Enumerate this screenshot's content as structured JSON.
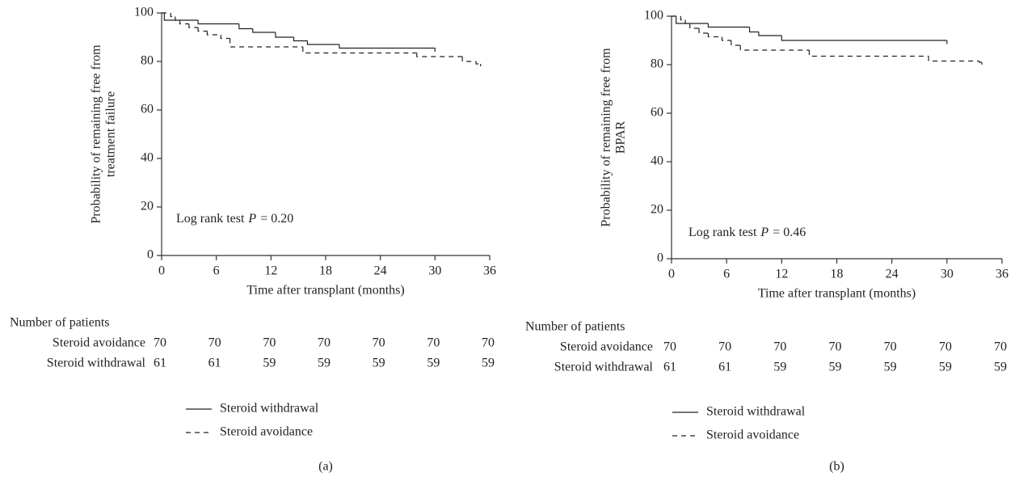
{
  "chart_data": [
    {
      "type": "line",
      "drawstyle": "steps-post",
      "panel_label": "(a)",
      "xlabel": "Time after transplant (months)",
      "ylabel": [
        "Probability of remaining free from",
        "treatment failure"
      ],
      "xlim": [
        0,
        36
      ],
      "ylim": [
        0,
        100
      ],
      "xticks": [
        0,
        6,
        12,
        18,
        24,
        30,
        36
      ],
      "yticks": [
        0,
        20,
        40,
        60,
        80,
        100
      ],
      "annotation": {
        "prefix": "Log rank test",
        "italic": "P",
        "suffix": "= 0.20"
      },
      "series": [
        {
          "name": "Steroid withdrawal",
          "color": "#222222",
          "dash": "none",
          "x": [
            0,
            0.3,
            4,
            8.5,
            10,
            12.5,
            14.5,
            16,
            19.5,
            30
          ],
          "values": [
            100,
            97,
            95.5,
            93.5,
            92,
            90,
            88.5,
            87,
            85.5,
            84
          ]
        },
        {
          "name": "Steroid avoidance",
          "color": "#222222",
          "dash": "6,5",
          "x": [
            0,
            1,
            1.5,
            2,
            3,
            4,
            5,
            6.5,
            7.5,
            15.5,
            28,
            33,
            34.5,
            35
          ],
          "values": [
            100,
            98.5,
            97,
            95.5,
            94,
            92.5,
            91,
            89.5,
            86,
            83.5,
            82,
            80,
            79,
            78
          ]
        }
      ],
      "risk_table": {
        "title": "Number of patients",
        "rows": [
          {
            "label": "Steroid avoidance",
            "counts": [
              70,
              70,
              70,
              70,
              70,
              70,
              70
            ]
          },
          {
            "label": "Steroid withdrawal",
            "counts": [
              61,
              61,
              59,
              59,
              59,
              59,
              59
            ]
          }
        ]
      }
    },
    {
      "type": "line",
      "drawstyle": "steps-post",
      "panel_label": "(b)",
      "xlabel": "Time after transplant (months)",
      "ylabel": [
        "Probability of remaining free from",
        "BPAR"
      ],
      "xlim": [
        0,
        36
      ],
      "ylim": [
        0,
        100
      ],
      "xticks": [
        0,
        6,
        12,
        18,
        24,
        30,
        36
      ],
      "yticks": [
        0,
        20,
        40,
        60,
        80,
        100
      ],
      "annotation": {
        "prefix": "Log rank test",
        "italic": "P",
        "suffix": "= 0.46"
      },
      "series": [
        {
          "name": "Steroid withdrawal",
          "color": "#222222",
          "dash": "none",
          "x": [
            0,
            0.5,
            4,
            8.5,
            9.5,
            12,
            30
          ],
          "values": [
            100,
            97,
            95.5,
            93.5,
            92,
            90,
            88.5
          ]
        },
        {
          "name": "Steroid avoidance",
          "color": "#222222",
          "dash": "6,5",
          "x": [
            0,
            1,
            1.5,
            2,
            3,
            4,
            5.5,
            6.5,
            7.5,
            15,
            28,
            33.5,
            33.8
          ],
          "values": [
            100,
            98.5,
            97,
            95,
            93,
            91.5,
            90,
            88,
            86,
            83.5,
            81.5,
            81,
            80
          ]
        }
      ],
      "risk_table": {
        "title": "Number of patients",
        "rows": [
          {
            "label": "Steroid avoidance",
            "counts": [
              70,
              70,
              70,
              70,
              70,
              70,
              70
            ]
          },
          {
            "label": "Steroid withdrawal",
            "counts": [
              61,
              61,
              59,
              59,
              59,
              59,
              59
            ]
          }
        ]
      }
    }
  ]
}
